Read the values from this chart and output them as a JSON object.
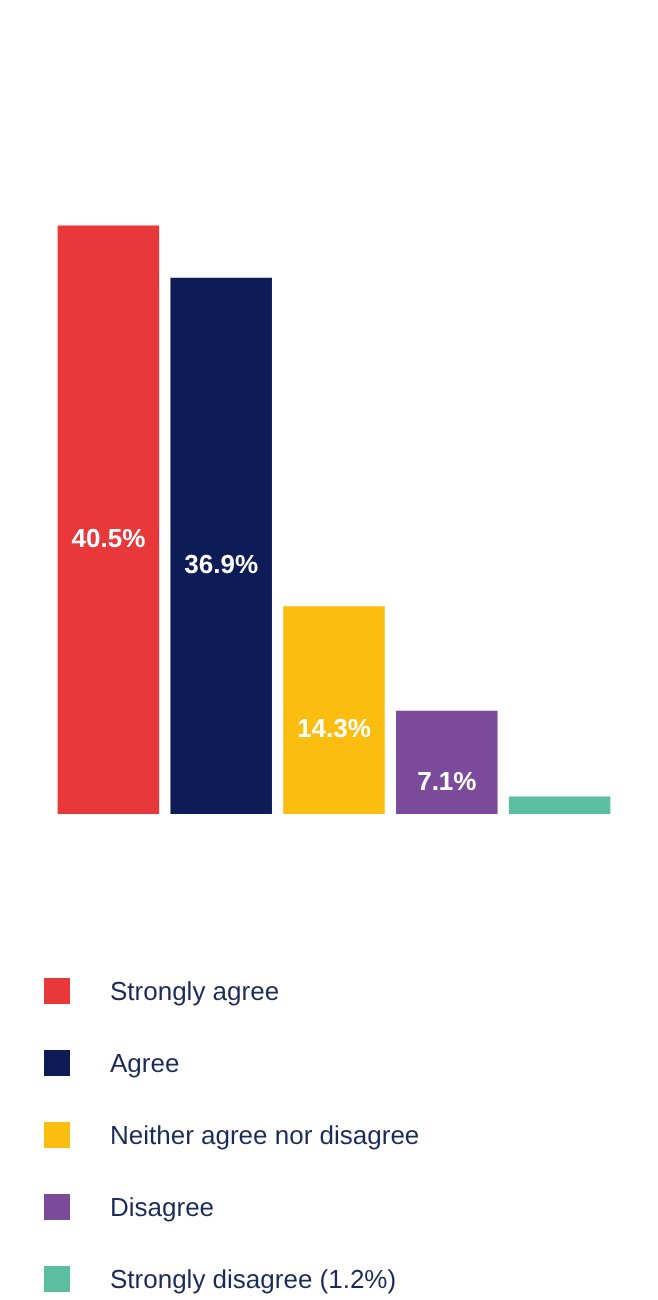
{
  "chart_data": {
    "type": "bar",
    "categories": [
      null,
      null,
      null,
      null,
      null
    ],
    "series": [
      {
        "name": "Strongly agree",
        "color": "#e8383a",
        "values": [
          40.5,
          null,
          null,
          null,
          null
        ],
        "value_labels": [
          "40.5%",
          null,
          null,
          null,
          null
        ]
      },
      {
        "name": "Agree",
        "color": "#0d1b57",
        "values": [
          null,
          36.9,
          null,
          null,
          null
        ],
        "value_labels": [
          null,
          "36.9%",
          null,
          null,
          null
        ]
      },
      {
        "name": "Neither agree nor disagree",
        "color": "#fbbd0f",
        "values": [
          null,
          null,
          14.3,
          null,
          null
        ],
        "value_labels": [
          null,
          null,
          "14.3%",
          null,
          null
        ]
      },
      {
        "name": "Disagree",
        "color": "#7b4a9a",
        "values": [
          null,
          null,
          null,
          7.1,
          null
        ],
        "value_labels": [
          null,
          null,
          null,
          "7.1%",
          null
        ]
      },
      {
        "name": "Strongly disagree (1.2%)",
        "color": "#5bbf9f",
        "values": [
          null,
          null,
          null,
          null,
          1.2
        ]
      }
    ],
    "stacked": true,
    "legend": "bottom"
  }
}
